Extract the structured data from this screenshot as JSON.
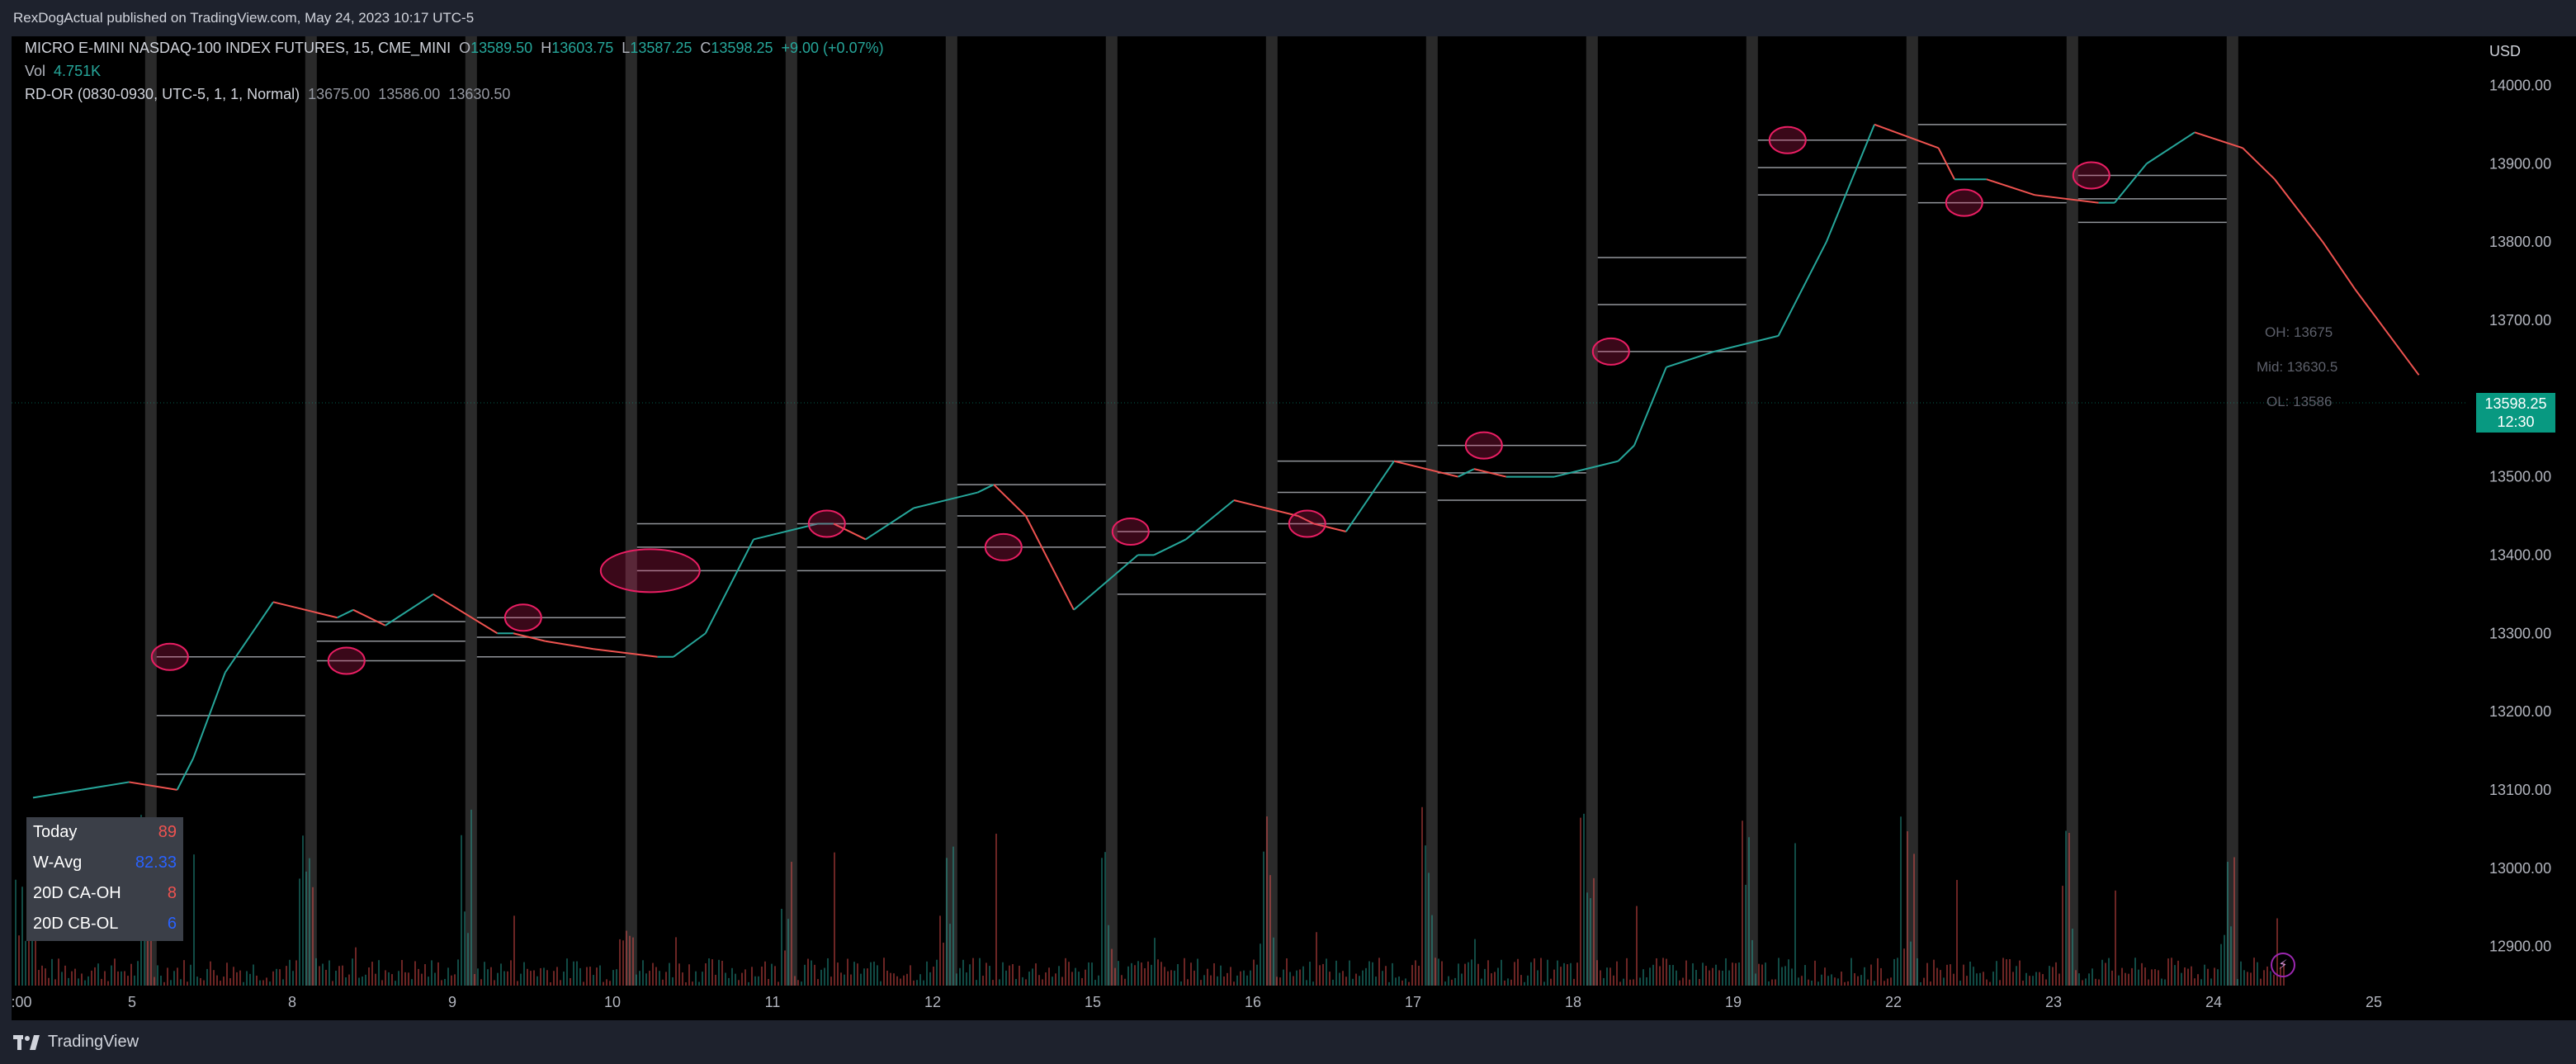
{
  "publish": {
    "text": "RexDogActual published on TradingView.com, May 24, 2023 10:17 UTC-5"
  },
  "legend": {
    "symbol": "MICRO E-MINI NASDAQ-100 INDEX FUTURES, 15, CME_MINI",
    "o_label": "O",
    "o_value": "13589.50",
    "h_label": "H",
    "h_value": "13603.75",
    "l_label": "L",
    "l_value": "13587.25",
    "c_label": "C",
    "c_value": "13598.25",
    "change": "+9.00 (+0.07%)",
    "vol_label": "Vol",
    "vol_value": "4.751K",
    "indicator_name": "RD-OR (0830-0930, UTC-5, 1, 1, Normal)",
    "ind_v1": "13675.00",
    "ind_v2": "13586.00",
    "ind_v3": "13630.50"
  },
  "axis": {
    "currency": "USD"
  },
  "price_tag": {
    "price": "13598.25",
    "countdown": "12:30"
  },
  "stats": {
    "rows": [
      {
        "label": "Today",
        "value": "89",
        "color": "red"
      },
      {
        "label": "W-Avg",
        "value": "82.33",
        "color": "blue"
      },
      {
        "label": "20D CA-OH",
        "value": "8",
        "color": "red"
      },
      {
        "label": "20D CB-OL",
        "value": "6",
        "color": "blue"
      }
    ]
  },
  "or_labels": {
    "oh": "OH: 13675",
    "mid": "Mid: 13630.5",
    "ol": "OL: 13586"
  },
  "footer": {
    "brand": "TradingView"
  },
  "colors": {
    "up": "#26a69a",
    "down": "#ef5350",
    "box": "#d1d4dc",
    "highlight": "#e91e63",
    "session": "#2a2a2a"
  },
  "chart_data": {
    "type": "line",
    "title": "MICRO E-MINI NASDAQ-100 INDEX FUTURES, 15, CME_MINI",
    "xlabel": "",
    "ylabel": "",
    "ylim": [
      12850,
      14050
    ],
    "y_ticks": [
      "12900.00",
      "13000.00",
      "13100.00",
      "13200.00",
      "13300.00",
      "13400.00",
      "13500.00",
      "13600.00",
      "13700.00",
      "13800.00",
      "13900.00",
      "14000.00"
    ],
    "x_ticks": [
      ":00",
      "5",
      "8",
      "9",
      "10",
      "11",
      "12",
      "15",
      "16",
      "17",
      "18",
      "19",
      "22",
      "23",
      "24",
      "25"
    ],
    "x": [
      0,
      0.3,
      0.6,
      0.9,
      1.0,
      1.2,
      1.5,
      1.9,
      2.0,
      2.2,
      2.5,
      2.9,
      3.0,
      3.2,
      3.5,
      3.9,
      4.0,
      4.2,
      4.5,
      4.9,
      5.0,
      5.2,
      5.5,
      5.9,
      6.0,
      6.2,
      6.5,
      6.9,
      7.0,
      7.2,
      7.5,
      7.9,
      8.0,
      8.2,
      8.5,
      8.9,
      9.0,
      9.2,
      9.5,
      9.9,
      10.0,
      10.2,
      10.5,
      10.9,
      11.0,
      11.2,
      11.5,
      11.9,
      12.0,
      12.2,
      12.5,
      12.9,
      13.0,
      13.2,
      13.5,
      13.8,
      14.0,
      14.3,
      14.5,
      14.9
    ],
    "series": [
      {
        "values": [
          13090,
          13100,
          13110,
          13100,
          13140,
          13250,
          13340,
          13320,
          13330,
          13310,
          13350,
          13300,
          13300,
          13290,
          13280,
          13270,
          13270,
          13300,
          13420,
          13440,
          13440,
          13420,
          13460,
          13480,
          13490,
          13450,
          13330,
          13400,
          13400,
          13420,
          13470,
          13450,
          13440,
          13430,
          13520,
          13500,
          13510,
          13500,
          13500,
          13520,
          13540,
          13640,
          13660,
          13680,
          13720,
          13800,
          13950,
          13920,
          13880,
          13880,
          13860,
          13850,
          13850,
          13900,
          13940,
          13920,
          13880,
          13800,
          13740,
          13630
        ]
      }
    ],
    "volume_note": "volume histogram with session-open spikes",
    "opening_ranges": [
      {
        "day": "5",
        "oh": 13270,
        "ol": 13120,
        "mid": 13195
      },
      {
        "day": "8",
        "oh": 13315,
        "ol": 13265,
        "mid": 13290
      },
      {
        "day": "9",
        "oh": 13320,
        "ol": 13270,
        "mid": 13295
      },
      {
        "day": "10",
        "oh": 13440,
        "ol": 13380,
        "mid": 13410
      },
      {
        "day": "11",
        "oh": 13440,
        "ol": 13380,
        "mid": 13410
      },
      {
        "day": "12",
        "oh": 13490,
        "ol": 13410,
        "mid": 13450
      },
      {
        "day": "15",
        "oh": 13430,
        "ol": 13350,
        "mid": 13390
      },
      {
        "day": "16",
        "oh": 13520,
        "ol": 13440,
        "mid": 13480
      },
      {
        "day": "17",
        "oh": 13540,
        "ol": 13470,
        "mid": 13505
      },
      {
        "day": "18",
        "oh": 13780,
        "ol": 13660,
        "mid": 13720
      },
      {
        "day": "19",
        "oh": 13930,
        "ol": 13860,
        "mid": 13895
      },
      {
        "day": "22",
        "oh": 13950,
        "ol": 13850,
        "mid": 13900
      },
      {
        "day": "23",
        "oh": 13885,
        "ol": 13825,
        "mid": 13855
      }
    ]
  }
}
